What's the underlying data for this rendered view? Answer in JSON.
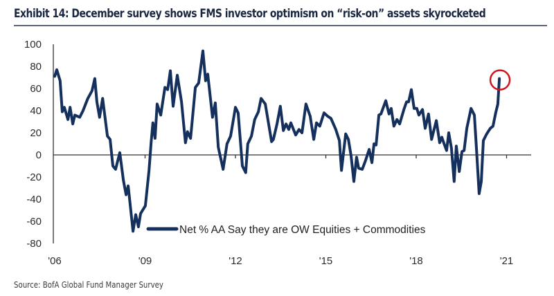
{
  "header": {
    "title": "Exhibit 14: December survey shows FMS investor optimism on “risk-on” assets skyrocketed"
  },
  "footer": {
    "source": "Source: BofA Global Fund Manager Survey"
  },
  "colors": {
    "series": "#15305c",
    "highlight": "#d0161c",
    "axis": "#333333"
  },
  "chart_data": {
    "type": "line",
    "title": "Exhibit 14: December survey shows FMS investor optimism on “risk-on” assets skyrocketed",
    "xlabel": "",
    "ylabel": "",
    "xlim": [
      2006,
      2022.3
    ],
    "ylim": [
      -80,
      100
    ],
    "yticks": [
      100,
      80,
      60,
      40,
      20,
      0,
      -20,
      -40,
      -60,
      -80
    ],
    "ytick_labels": [
      "100",
      "80",
      "60",
      "40",
      "20",
      "0",
      "-20",
      "-40",
      "-60",
      "-80"
    ],
    "xticks": [
      2006,
      2009,
      2012,
      2015,
      2018,
      2021
    ],
    "xtick_labels": [
      "'06",
      "'09",
      "'12",
      "'15",
      "'18",
      "'21"
    ],
    "grid": false,
    "legend": {
      "placement": "bottom-center",
      "entries": [
        "Net % AA Say they are OW Equities + Commodities"
      ]
    },
    "annotations": [
      {
        "type": "circle",
        "target": "latest point",
        "x": 2020.76,
        "y": 69
      }
    ],
    "series": [
      {
        "name": "Net % AA Say they are OW Equities + Commodities",
        "x": [
          2006.0,
          2006.07,
          2006.18,
          2006.25,
          2006.32,
          2006.44,
          2006.51,
          2006.6,
          2006.67,
          2006.83,
          2006.94,
          2007.1,
          2007.24,
          2007.33,
          2007.4,
          2007.49,
          2007.59,
          2007.75,
          2007.84,
          2007.93,
          2008.02,
          2008.16,
          2008.28,
          2008.37,
          2008.44,
          2008.6,
          2008.69,
          2008.78,
          2008.85,
          2009.01,
          2009.13,
          2009.2,
          2009.26,
          2009.33,
          2009.4,
          2009.52,
          2009.66,
          2009.75,
          2009.84,
          2009.93,
          2010.07,
          2010.21,
          2010.34,
          2010.41,
          2010.51,
          2010.67,
          2010.78,
          2010.92,
          2011.01,
          2011.08,
          2011.24,
          2011.33,
          2011.43,
          2011.59,
          2011.72,
          2011.84,
          2012.0,
          2012.09,
          2012.23,
          2012.34,
          2012.41,
          2012.53,
          2012.64,
          2012.76,
          2012.85,
          2012.99,
          2013.2,
          2013.26,
          2013.38,
          2013.49,
          2013.59,
          2013.68,
          2013.77,
          2013.84,
          2014.0,
          2014.11,
          2014.21,
          2014.34,
          2014.48,
          2014.6,
          2014.69,
          2014.8,
          2014.94,
          2015.06,
          2015.17,
          2015.33,
          2015.45,
          2015.52,
          2015.66,
          2015.75,
          2015.84,
          2015.93,
          2016.02,
          2016.09,
          2016.21,
          2016.32,
          2016.44,
          2016.53,
          2016.6,
          2016.67,
          2016.76,
          2016.83,
          2016.99,
          2017.1,
          2017.17,
          2017.26,
          2017.36,
          2017.45,
          2017.59,
          2017.68,
          2017.75,
          2017.84,
          2017.93,
          2018.02,
          2018.09,
          2018.21,
          2018.3,
          2018.41,
          2018.51,
          2018.67,
          2018.78,
          2018.85,
          2018.94,
          2019.01,
          2019.08,
          2019.17,
          2019.26,
          2019.33,
          2019.43,
          2019.52,
          2019.59,
          2019.68,
          2019.82,
          2019.93,
          2020.0,
          2020.09,
          2020.16,
          2020.23,
          2020.34,
          2020.46,
          2020.55,
          2020.64,
          2020.71,
          2020.76
        ],
        "values": [
          71,
          77,
          67,
          39,
          43,
          32,
          43,
          28,
          36,
          34,
          40,
          51,
          58,
          69,
          48,
          34,
          51,
          17,
          14,
          -10,
          -13,
          2,
          -23,
          -36,
          -28,
          -69,
          -54,
          -65,
          -53,
          -46,
          -14,
          11,
          29,
          15,
          46,
          36,
          61,
          59,
          76,
          44,
          72,
          48,
          11,
          21,
          15,
          61,
          65,
          94,
          67,
          73,
          34,
          47,
          7,
          -13,
          10,
          17,
          43,
          38,
          -10,
          -16,
          10,
          17,
          32,
          39,
          51,
          46,
          12,
          14,
          28,
          44,
          22,
          28,
          23,
          29,
          18,
          23,
          20,
          46,
          35,
          14,
          29,
          26,
          38,
          35,
          33,
          23,
          13,
          -14,
          19,
          14,
          -1,
          -24,
          -2,
          -12,
          -13,
          -5,
          5,
          -7,
          10,
          9,
          36,
          37,
          49,
          37,
          42,
          26,
          32,
          28,
          41,
          48,
          48,
          59,
          42,
          42,
          36,
          41,
          24,
          37,
          14,
          31,
          11,
          16,
          9,
          4,
          20,
          6,
          -24,
          8,
          -15,
          3,
          4,
          24,
          42,
          36,
          6,
          -35,
          -24,
          13,
          19,
          24,
          26,
          38,
          46,
          69
        ]
      }
    ]
  }
}
